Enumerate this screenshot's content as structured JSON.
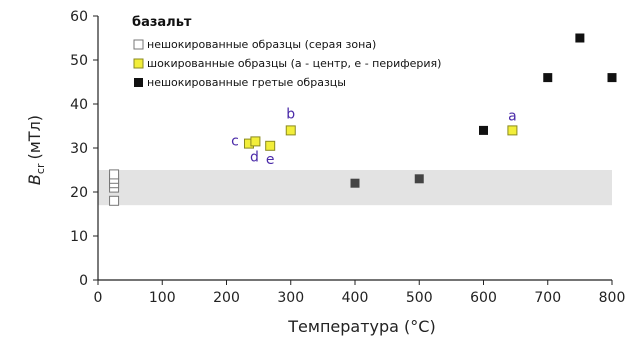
{
  "chart_data": {
    "type": "scatter",
    "title": "",
    "xlabel": "Температура (°C)",
    "ylabel_main": "B",
    "ylabel_sub": "cr",
    "ylabel_unit": "(мТл)",
    "xlim": [
      0,
      800
    ],
    "ylim": [
      0,
      60
    ],
    "x_ticks": [
      0,
      100,
      200,
      300,
      400,
      500,
      600,
      700,
      800
    ],
    "y_ticks": [
      0,
      10,
      20,
      30,
      40,
      50,
      60
    ],
    "grid": false,
    "gray_zone": [
      17,
      25
    ],
    "legend": {
      "placement": "top-left",
      "title": "базальт",
      "entries": [
        "нешокированные образцы (серая зона)",
        "шокированные образцы (a - центр, e - периферия)",
        "нешокированные гретые образцы"
      ]
    },
    "series": [
      {
        "name": "нешокированные образцы (серая зона)",
        "marker": "open-square",
        "color": "#777777",
        "points": [
          [
            25,
            18
          ],
          [
            25,
            21
          ],
          [
            25,
            22
          ],
          [
            25,
            23
          ],
          [
            25,
            24
          ]
        ]
      },
      {
        "name": "шокированные образцы (a - центр, e - периферия)",
        "marker": "yellow-square",
        "color": "#f2ee3a",
        "points": [
          {
            "x": 645,
            "y": 34,
            "label": "a"
          },
          {
            "x": 300,
            "y": 34,
            "label": "b"
          },
          {
            "x": 235,
            "y": 31,
            "label": "c"
          },
          {
            "x": 245,
            "y": 31.5,
            "label": "d"
          },
          {
            "x": 268,
            "y": 30.5,
            "label": "e"
          }
        ]
      },
      {
        "name": "нешокированные гретые образцы",
        "marker": "filled-square",
        "color": "#111111",
        "points": [
          [
            400,
            22
          ],
          [
            500,
            23
          ],
          [
            600,
            34
          ],
          [
            700,
            46
          ],
          [
            750,
            55
          ],
          [
            800,
            46
          ]
        ]
      }
    ]
  }
}
